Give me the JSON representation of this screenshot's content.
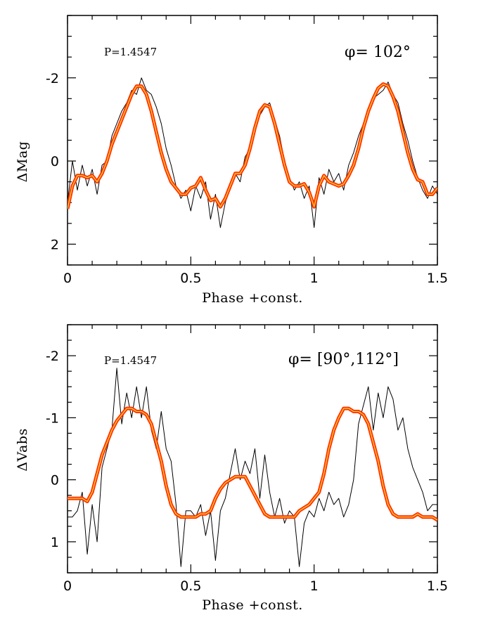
{
  "chart_data": [
    {
      "type": "line",
      "xlabel": "Phase +const.",
      "ylabel": "ΔMag",
      "xlim": [
        0,
        1.5
      ],
      "ylim": [
        2.5,
        -3.5
      ],
      "xticks": [
        0,
        0.5,
        1,
        1.5
      ],
      "xtick_labels": [
        "0",
        "0.5",
        "1",
        "1.5"
      ],
      "yticks": [
        -2,
        0,
        2
      ],
      "ytick_labels": [
        "-2",
        "0",
        "2"
      ],
      "annotations": {
        "period": "P=1.4547",
        "phi": "φ=  102°"
      },
      "series": [
        {
          "role": "observed",
          "color": "#000000",
          "x": [
            0.0,
            0.02,
            0.04,
            0.06,
            0.08,
            0.1,
            0.12,
            0.14,
            0.16,
            0.18,
            0.2,
            0.22,
            0.24,
            0.26,
            0.28,
            0.3,
            0.32,
            0.34,
            0.36,
            0.38,
            0.4,
            0.42,
            0.44,
            0.46,
            0.48,
            0.5,
            0.52,
            0.54,
            0.56,
            0.58,
            0.6,
            0.62,
            0.64,
            0.66,
            0.68,
            0.7,
            0.72,
            0.74,
            0.76,
            0.78,
            0.8,
            0.82,
            0.84,
            0.86,
            0.88,
            0.9,
            0.92,
            0.94,
            0.96,
            0.98,
            1.0,
            1.02,
            1.04,
            1.06,
            1.08,
            1.1,
            1.12,
            1.14,
            1.16,
            1.18,
            1.2,
            1.22,
            1.24,
            1.26,
            1.28,
            1.3,
            1.32,
            1.34,
            1.36,
            1.38,
            1.4,
            1.42,
            1.44,
            1.46,
            1.48,
            1.5
          ],
          "values": [
            1.0,
            0.0,
            0.7,
            0.1,
            0.6,
            0.2,
            0.8,
            0.1,
            0.0,
            -0.6,
            -0.9,
            -1.2,
            -1.4,
            -1.7,
            -1.6,
            -2.0,
            -1.7,
            -1.6,
            -1.3,
            -0.9,
            -0.3,
            0.1,
            0.6,
            0.9,
            0.7,
            1.2,
            0.6,
            0.9,
            0.5,
            1.4,
            0.8,
            1.6,
            1.0,
            0.6,
            0.3,
            0.5,
            -0.1,
            -0.3,
            -0.7,
            -1.1,
            -1.3,
            -1.4,
            -1.0,
            -0.6,
            0.0,
            0.4,
            0.7,
            0.5,
            0.9,
            0.6,
            1.6,
            0.4,
            0.8,
            0.2,
            0.5,
            0.3,
            0.7,
            0.1,
            -0.2,
            -0.6,
            -0.9,
            -1.2,
            -1.5,
            -1.6,
            -1.7,
            -1.9,
            -1.6,
            -1.4,
            -0.9,
            -0.5,
            0.0,
            0.4,
            0.7,
            0.9,
            0.6,
            0.8
          ]
        },
        {
          "role": "smoothed",
          "color": "#ff3300",
          "x": [
            0.0,
            0.02,
            0.04,
            0.06,
            0.08,
            0.1,
            0.12,
            0.14,
            0.16,
            0.18,
            0.2,
            0.22,
            0.24,
            0.26,
            0.28,
            0.3,
            0.32,
            0.34,
            0.36,
            0.38,
            0.4,
            0.42,
            0.44,
            0.46,
            0.48,
            0.5,
            0.52,
            0.54,
            0.56,
            0.58,
            0.6,
            0.62,
            0.64,
            0.66,
            0.68,
            0.7,
            0.72,
            0.74,
            0.76,
            0.78,
            0.8,
            0.82,
            0.84,
            0.86,
            0.88,
            0.9,
            0.92,
            0.94,
            0.96,
            0.98,
            1.0,
            1.02,
            1.04,
            1.06,
            1.08,
            1.1,
            1.12,
            1.14,
            1.16,
            1.18,
            1.2,
            1.22,
            1.24,
            1.26,
            1.28,
            1.3,
            1.32,
            1.34,
            1.36,
            1.38,
            1.4,
            1.42,
            1.44,
            1.46,
            1.48,
            1.5
          ],
          "values": [
            1.15,
            0.6,
            0.35,
            0.35,
            0.4,
            0.35,
            0.5,
            0.3,
            0.0,
            -0.4,
            -0.7,
            -1.0,
            -1.3,
            -1.6,
            -1.8,
            -1.8,
            -1.6,
            -1.2,
            -0.7,
            -0.2,
            0.2,
            0.5,
            0.65,
            0.8,
            0.8,
            0.65,
            0.6,
            0.4,
            0.7,
            0.95,
            0.9,
            1.1,
            0.9,
            0.6,
            0.3,
            0.3,
            0.1,
            -0.3,
            -0.8,
            -1.2,
            -1.35,
            -1.3,
            -0.9,
            -0.4,
            0.1,
            0.5,
            0.6,
            0.6,
            0.55,
            0.75,
            1.1,
            0.6,
            0.35,
            0.5,
            0.55,
            0.6,
            0.55,
            0.35,
            0.1,
            -0.3,
            -0.8,
            -1.2,
            -1.5,
            -1.75,
            -1.85,
            -1.8,
            -1.55,
            -1.2,
            -0.7,
            -0.2,
            0.2,
            0.45,
            0.5,
            0.8,
            0.8,
            0.65
          ]
        }
      ]
    },
    {
      "type": "line",
      "xlabel": "Phase +const.",
      "ylabel": "ΔVabs",
      "xlim": [
        0,
        1.5
      ],
      "ylim": [
        1.5,
        -2.5
      ],
      "xticks": [
        0,
        0.5,
        1,
        1.5
      ],
      "xtick_labels": [
        "0",
        "0.5",
        "1",
        "1.5"
      ],
      "yticks": [
        -2,
        -1,
        0,
        1
      ],
      "ytick_labels": [
        "-2",
        "-1",
        "0",
        "1"
      ],
      "annotations": {
        "period": "P=1.4547",
        "phi": "φ=  [90°,112°]"
      },
      "series": [
        {
          "role": "observed",
          "color": "#000000",
          "x": [
            0.0,
            0.02,
            0.04,
            0.06,
            0.08,
            0.1,
            0.12,
            0.14,
            0.16,
            0.18,
            0.2,
            0.22,
            0.24,
            0.26,
            0.28,
            0.3,
            0.32,
            0.34,
            0.36,
            0.38,
            0.4,
            0.42,
            0.44,
            0.46,
            0.48,
            0.5,
            0.52,
            0.54,
            0.56,
            0.58,
            0.6,
            0.62,
            0.64,
            0.66,
            0.68,
            0.7,
            0.72,
            0.74,
            0.76,
            0.78,
            0.8,
            0.82,
            0.84,
            0.86,
            0.88,
            0.9,
            0.92,
            0.94,
            0.96,
            0.98,
            1.0,
            1.02,
            1.04,
            1.06,
            1.08,
            1.1,
            1.12,
            1.14,
            1.16,
            1.18,
            1.2,
            1.22,
            1.24,
            1.26,
            1.28,
            1.3,
            1.32,
            1.34,
            1.36,
            1.38,
            1.4,
            1.42,
            1.44,
            1.46,
            1.48,
            1.5
          ],
          "values": [
            0.6,
            0.6,
            0.5,
            0.2,
            1.2,
            0.4,
            1.0,
            -0.2,
            -0.5,
            -0.8,
            -1.8,
            -0.9,
            -1.4,
            -1.0,
            -1.5,
            -1.0,
            -1.5,
            -0.8,
            -0.5,
            -1.1,
            -0.5,
            -0.3,
            0.4,
            1.4,
            0.5,
            0.5,
            0.6,
            0.4,
            0.9,
            0.5,
            1.3,
            0.5,
            0.3,
            -0.1,
            -0.5,
            0.0,
            -0.3,
            -0.1,
            -0.5,
            0.3,
            -0.4,
            0.2,
            0.6,
            0.3,
            0.7,
            0.5,
            0.6,
            1.4,
            0.7,
            0.5,
            0.6,
            0.3,
            0.5,
            0.2,
            0.4,
            0.3,
            0.6,
            0.4,
            0.0,
            -0.9,
            -1.2,
            -1.5,
            -0.8,
            -1.4,
            -1.0,
            -1.5,
            -1.3,
            -0.8,
            -1.0,
            -0.5,
            -0.2,
            0.0,
            0.2,
            0.5,
            0.4,
            0.4
          ]
        },
        {
          "role": "smoothed",
          "color": "#ff3300",
          "x": [
            0.0,
            0.02,
            0.04,
            0.06,
            0.08,
            0.1,
            0.12,
            0.14,
            0.16,
            0.18,
            0.2,
            0.22,
            0.24,
            0.26,
            0.28,
            0.3,
            0.32,
            0.34,
            0.36,
            0.38,
            0.4,
            0.42,
            0.44,
            0.46,
            0.48,
            0.5,
            0.52,
            0.54,
            0.56,
            0.58,
            0.6,
            0.62,
            0.64,
            0.66,
            0.68,
            0.7,
            0.72,
            0.74,
            0.76,
            0.78,
            0.8,
            0.82,
            0.84,
            0.86,
            0.88,
            0.9,
            0.92,
            0.94,
            0.96,
            0.98,
            1.0,
            1.02,
            1.04,
            1.06,
            1.08,
            1.1,
            1.12,
            1.14,
            1.16,
            1.18,
            1.2,
            1.22,
            1.24,
            1.26,
            1.28,
            1.3,
            1.32,
            1.34,
            1.36,
            1.38,
            1.4,
            1.42,
            1.44,
            1.46,
            1.48,
            1.5
          ],
          "values": [
            0.3,
            0.3,
            0.3,
            0.3,
            0.35,
            0.2,
            -0.1,
            -0.4,
            -0.6,
            -0.8,
            -0.95,
            -1.05,
            -1.15,
            -1.15,
            -1.1,
            -1.1,
            -1.05,
            -0.9,
            -0.6,
            -0.3,
            0.1,
            0.4,
            0.55,
            0.6,
            0.6,
            0.6,
            0.6,
            0.55,
            0.55,
            0.5,
            0.3,
            0.15,
            0.05,
            0.0,
            -0.05,
            -0.05,
            -0.05,
            0.1,
            0.25,
            0.4,
            0.55,
            0.6,
            0.6,
            0.6,
            0.6,
            0.6,
            0.6,
            0.5,
            0.45,
            0.4,
            0.3,
            0.2,
            -0.1,
            -0.5,
            -0.8,
            -1.0,
            -1.15,
            -1.15,
            -1.1,
            -1.1,
            -1.05,
            -0.9,
            -0.6,
            -0.3,
            0.1,
            0.4,
            0.55,
            0.6,
            0.6,
            0.6,
            0.6,
            0.55,
            0.6,
            0.6,
            0.6,
            0.65
          ]
        }
      ]
    }
  ]
}
